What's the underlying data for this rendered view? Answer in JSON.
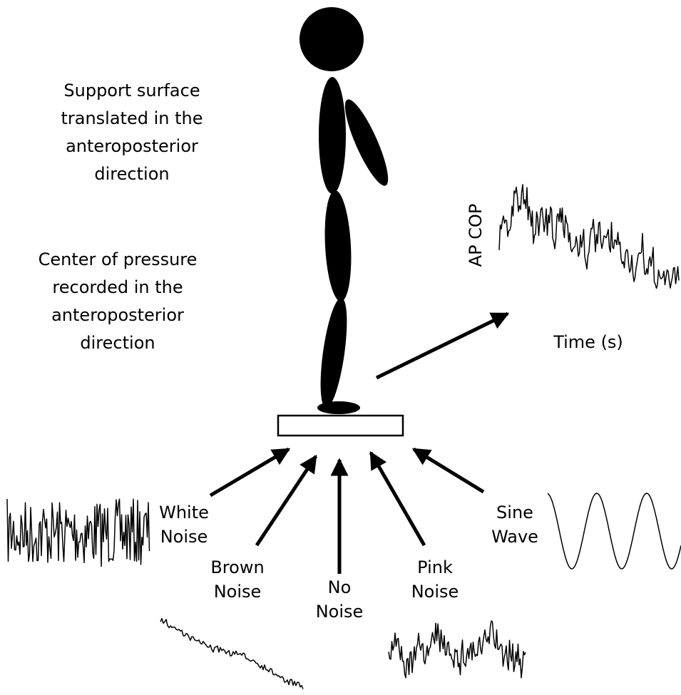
{
  "notes": [
    {
      "lines": [
        "Support surface",
        "translated in the",
        "anteroposterior",
        "direction"
      ]
    },
    {
      "lines": [
        "Center of pressure",
        "recorded in the",
        "anteroposterior",
        "direction"
      ]
    }
  ],
  "output": {
    "y_label": "AP COP",
    "x_label": "Time (s)"
  },
  "inputs": [
    {
      "lines": [
        "White",
        "Noise"
      ]
    },
    {
      "lines": [
        "Brown",
        "Noise"
      ]
    },
    {
      "lines": [
        "No",
        "Noise"
      ]
    },
    {
      "lines": [
        "Pink",
        "Noise"
      ]
    },
    {
      "lines": [
        "Sine",
        "Wave"
      ]
    }
  ]
}
